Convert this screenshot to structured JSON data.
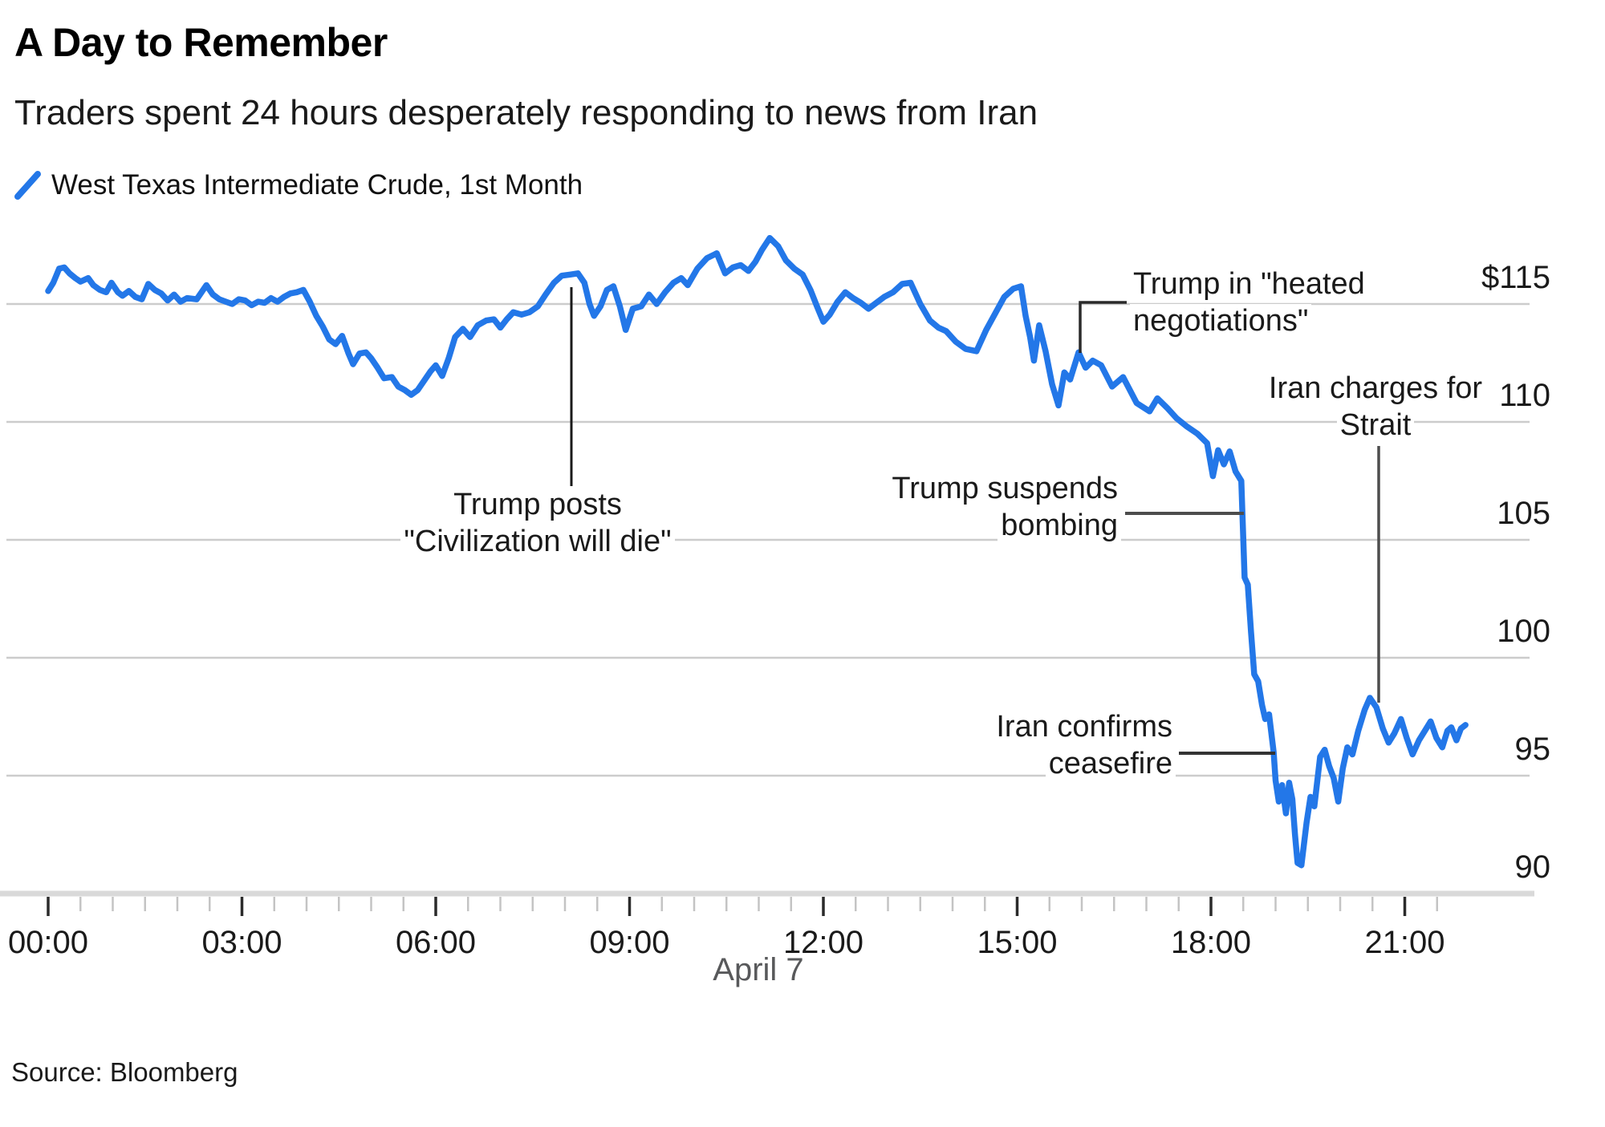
{
  "header": {
    "title": "A Day to Remember",
    "subtitle": "Traders spent 24 hours desperately responding to news from Iran"
  },
  "legend": {
    "label": "West Texas Intermediate Crude, 1st Month",
    "swatch_color": "#2377e8"
  },
  "source": "Source: Bloomberg",
  "colors": {
    "line": "#2377e8",
    "gridline": "#cccccc",
    "axis_line": "#d9d9d9",
    "tick_minor": "#c4c4c4",
    "tick_major": "#2b2b2b",
    "text": "#1a1a1a",
    "muted": "#58595b",
    "connector": "#333333"
  },
  "chart_data": {
    "type": "line",
    "title": "A Day to Remember",
    "subtitle": "Traders spent 24 hours desperately responding to news from Iran",
    "grid": "horizontal",
    "legend_position": "top-left",
    "x_axis": {
      "label": "April 7",
      "tick_labels": [
        "00:00",
        "03:00",
        "06:00",
        "09:00",
        "12:00",
        "15:00",
        "18:00",
        "21:00"
      ],
      "tick_hours": [
        0,
        3,
        6,
        9,
        12,
        15,
        18,
        21
      ],
      "minor_tick_interval_hours": 0.5,
      "range_hours": [
        0,
        22.9
      ]
    },
    "y_axis": {
      "side": "right",
      "tick_labels": [
        "$115",
        "110",
        "105",
        "100",
        "95",
        "90"
      ],
      "tick_values": [
        115,
        110,
        105,
        100,
        95,
        90
      ],
      "range": [
        90,
        118.5
      ],
      "unit": "USD/barrel"
    },
    "annotations": [
      {
        "id": "trump-posts",
        "line1": "Trump posts",
        "line2": "\"Civilization will die\"",
        "event_time": "08:05",
        "event_value": 116.2
      },
      {
        "id": "heated-negotiations",
        "line1": "Trump in \"heated",
        "line2": "negotiations\"",
        "event_time": "15:58",
        "event_value": 113.0
      },
      {
        "id": "suspends-bombing",
        "line1": "Trump suspends",
        "line2": "bombing",
        "event_time": "18:29",
        "event_value": 106.2
      },
      {
        "id": "confirms-ceasefire",
        "line1": "Iran confirms",
        "line2": "ceasefire",
        "event_time": "18:58",
        "event_value": 96.0
      },
      {
        "id": "charges-strait",
        "line1": "Iran charges for",
        "line2": "Strait",
        "event_time": "20:36",
        "event_value": 97.9
      }
    ],
    "series": [
      {
        "name": "West Texas Intermediate Crude, 1st Month",
        "color": "#2377e8",
        "points": [
          [
            0,
            115.55
          ],
          [
            0.08,
            115.9
          ],
          [
            0.17,
            116.5
          ],
          [
            0.25,
            116.55
          ],
          [
            0.33,
            116.3
          ],
          [
            0.42,
            116.1
          ],
          [
            0.5,
            115.95
          ],
          [
            0.62,
            116.1
          ],
          [
            0.7,
            115.8
          ],
          [
            0.8,
            115.6
          ],
          [
            0.9,
            115.5
          ],
          [
            0.98,
            115.9
          ],
          [
            1.08,
            115.5
          ],
          [
            1.15,
            115.35
          ],
          [
            1.25,
            115.55
          ],
          [
            1.35,
            115.3
          ],
          [
            1.45,
            115.2
          ],
          [
            1.55,
            115.85
          ],
          [
            1.65,
            115.6
          ],
          [
            1.75,
            115.45
          ],
          [
            1.85,
            115.15
          ],
          [
            1.95,
            115.4
          ],
          [
            2.05,
            115.1
          ],
          [
            2.15,
            115.25
          ],
          [
            2.3,
            115.2
          ],
          [
            2.45,
            115.8
          ],
          [
            2.55,
            115.4
          ],
          [
            2.65,
            115.2
          ],
          [
            2.75,
            115.1
          ],
          [
            2.85,
            115.0
          ],
          [
            2.95,
            115.2
          ],
          [
            3.05,
            115.15
          ],
          [
            3.15,
            114.95
          ],
          [
            3.25,
            115.1
          ],
          [
            3.35,
            115.05
          ],
          [
            3.45,
            115.25
          ],
          [
            3.55,
            115.1
          ],
          [
            3.65,
            115.3
          ],
          [
            3.75,
            115.45
          ],
          [
            3.85,
            115.5
          ],
          [
            3.95,
            115.6
          ],
          [
            4.05,
            115.1
          ],
          [
            4.15,
            114.5
          ],
          [
            4.25,
            114.05
          ],
          [
            4.35,
            113.5
          ],
          [
            4.45,
            113.3
          ],
          [
            4.55,
            113.65
          ],
          [
            4.65,
            112.9
          ],
          [
            4.72,
            112.45
          ],
          [
            4.82,
            112.9
          ],
          [
            4.92,
            112.95
          ],
          [
            5.0,
            112.7
          ],
          [
            5.1,
            112.3
          ],
          [
            5.2,
            111.85
          ],
          [
            5.32,
            111.9
          ],
          [
            5.42,
            111.5
          ],
          [
            5.52,
            111.35
          ],
          [
            5.62,
            111.15
          ],
          [
            5.72,
            111.35
          ],
          [
            5.82,
            111.75
          ],
          [
            5.92,
            112.15
          ],
          [
            6.0,
            112.4
          ],
          [
            6.1,
            111.95
          ],
          [
            6.2,
            112.7
          ],
          [
            6.3,
            113.6
          ],
          [
            6.42,
            113.95
          ],
          [
            6.53,
            113.6
          ],
          [
            6.65,
            114.1
          ],
          [
            6.78,
            114.3
          ],
          [
            6.9,
            114.35
          ],
          [
            7.0,
            114.0
          ],
          [
            7.1,
            114.35
          ],
          [
            7.2,
            114.65
          ],
          [
            7.33,
            114.55
          ],
          [
            7.45,
            114.65
          ],
          [
            7.58,
            114.9
          ],
          [
            7.7,
            115.4
          ],
          [
            7.83,
            115.9
          ],
          [
            7.95,
            116.2
          ],
          [
            8.08,
            116.25
          ],
          [
            8.2,
            116.3
          ],
          [
            8.3,
            115.9
          ],
          [
            8.38,
            115.0
          ],
          [
            8.45,
            114.5
          ],
          [
            8.55,
            114.9
          ],
          [
            8.65,
            115.6
          ],
          [
            8.75,
            115.75
          ],
          [
            8.85,
            114.9
          ],
          [
            8.94,
            113.9
          ],
          [
            9.05,
            114.8
          ],
          [
            9.18,
            114.9
          ],
          [
            9.3,
            115.4
          ],
          [
            9.42,
            115.0
          ],
          [
            9.55,
            115.5
          ],
          [
            9.68,
            115.9
          ],
          [
            9.8,
            116.1
          ],
          [
            9.9,
            115.8
          ],
          [
            10.05,
            116.5
          ],
          [
            10.2,
            116.95
          ],
          [
            10.35,
            117.15
          ],
          [
            10.48,
            116.3
          ],
          [
            10.6,
            116.55
          ],
          [
            10.72,
            116.65
          ],
          [
            10.84,
            116.4
          ],
          [
            10.95,
            116.8
          ],
          [
            11.05,
            117.3
          ],
          [
            11.17,
            117.8
          ],
          [
            11.3,
            117.45
          ],
          [
            11.42,
            116.85
          ],
          [
            11.55,
            116.5
          ],
          [
            11.68,
            116.25
          ],
          [
            11.8,
            115.6
          ],
          [
            11.9,
            114.9
          ],
          [
            12.0,
            114.25
          ],
          [
            12.1,
            114.55
          ],
          [
            12.22,
            115.1
          ],
          [
            12.34,
            115.5
          ],
          [
            12.46,
            115.25
          ],
          [
            12.58,
            115.05
          ],
          [
            12.7,
            114.8
          ],
          [
            12.82,
            115.05
          ],
          [
            12.94,
            115.3
          ],
          [
            13.08,
            115.5
          ],
          [
            13.22,
            115.85
          ],
          [
            13.35,
            115.9
          ],
          [
            13.5,
            115.0
          ],
          [
            13.65,
            114.3
          ],
          [
            13.78,
            114.0
          ],
          [
            13.9,
            113.85
          ],
          [
            14.05,
            113.4
          ],
          [
            14.2,
            113.1
          ],
          [
            14.37,
            113.0
          ],
          [
            14.52,
            113.9
          ],
          [
            14.66,
            114.6
          ],
          [
            14.8,
            115.3
          ],
          [
            14.94,
            115.65
          ],
          [
            15.06,
            115.75
          ],
          [
            15.13,
            114.5
          ],
          [
            15.2,
            113.6
          ],
          [
            15.26,
            112.6
          ],
          [
            15.34,
            114.1
          ],
          [
            15.44,
            113.0
          ],
          [
            15.54,
            111.6
          ],
          [
            15.64,
            110.7
          ],
          [
            15.73,
            112.1
          ],
          [
            15.82,
            111.8
          ],
          [
            15.95,
            112.95
          ],
          [
            16.06,
            112.3
          ],
          [
            16.17,
            112.6
          ],
          [
            16.3,
            112.4
          ],
          [
            16.47,
            111.5
          ],
          [
            16.64,
            111.9
          ],
          [
            16.85,
            110.8
          ],
          [
            17.05,
            110.45
          ],
          [
            17.17,
            111.0
          ],
          [
            17.32,
            110.6
          ],
          [
            17.47,
            110.15
          ],
          [
            17.63,
            109.8
          ],
          [
            17.79,
            109.5
          ],
          [
            17.94,
            109.1
          ],
          [
            18.03,
            107.7
          ],
          [
            18.11,
            108.8
          ],
          [
            18.2,
            108.2
          ],
          [
            18.29,
            108.75
          ],
          [
            18.38,
            107.9
          ],
          [
            18.47,
            107.5
          ],
          [
            18.52,
            103.4
          ],
          [
            18.57,
            103.1
          ],
          [
            18.62,
            101.1
          ],
          [
            18.67,
            99.3
          ],
          [
            18.73,
            99.0
          ],
          [
            18.79,
            98.0
          ],
          [
            18.84,
            97.4
          ],
          [
            18.9,
            97.6
          ],
          [
            18.97,
            96.0
          ],
          [
            19.0,
            94.8
          ],
          [
            19.05,
            93.9
          ],
          [
            19.1,
            94.6
          ],
          [
            19.16,
            93.4
          ],
          [
            19.21,
            94.7
          ],
          [
            19.26,
            94.0
          ],
          [
            19.3,
            92.5
          ],
          [
            19.34,
            91.3
          ],
          [
            19.4,
            91.2
          ],
          [
            19.48,
            93.0
          ],
          [
            19.54,
            94.1
          ],
          [
            19.6,
            93.7
          ],
          [
            19.69,
            95.8
          ],
          [
            19.76,
            96.1
          ],
          [
            19.83,
            95.4
          ],
          [
            19.9,
            94.9
          ],
          [
            19.97,
            93.9
          ],
          [
            20.04,
            95.3
          ],
          [
            20.11,
            96.2
          ],
          [
            20.19,
            95.9
          ],
          [
            20.28,
            96.9
          ],
          [
            20.38,
            97.8
          ],
          [
            20.46,
            98.3
          ],
          [
            20.56,
            97.9
          ],
          [
            20.66,
            97.0
          ],
          [
            20.75,
            96.4
          ],
          [
            20.84,
            96.8
          ],
          [
            20.94,
            97.4
          ],
          [
            21.03,
            96.6
          ],
          [
            21.12,
            95.9
          ],
          [
            21.22,
            96.5
          ],
          [
            21.31,
            96.9
          ],
          [
            21.4,
            97.3
          ],
          [
            21.49,
            96.6
          ],
          [
            21.58,
            96.2
          ],
          [
            21.66,
            96.9
          ],
          [
            21.72,
            97.05
          ],
          [
            21.8,
            96.5
          ],
          [
            21.87,
            97.0
          ],
          [
            21.94,
            97.15
          ]
        ]
      }
    ]
  }
}
